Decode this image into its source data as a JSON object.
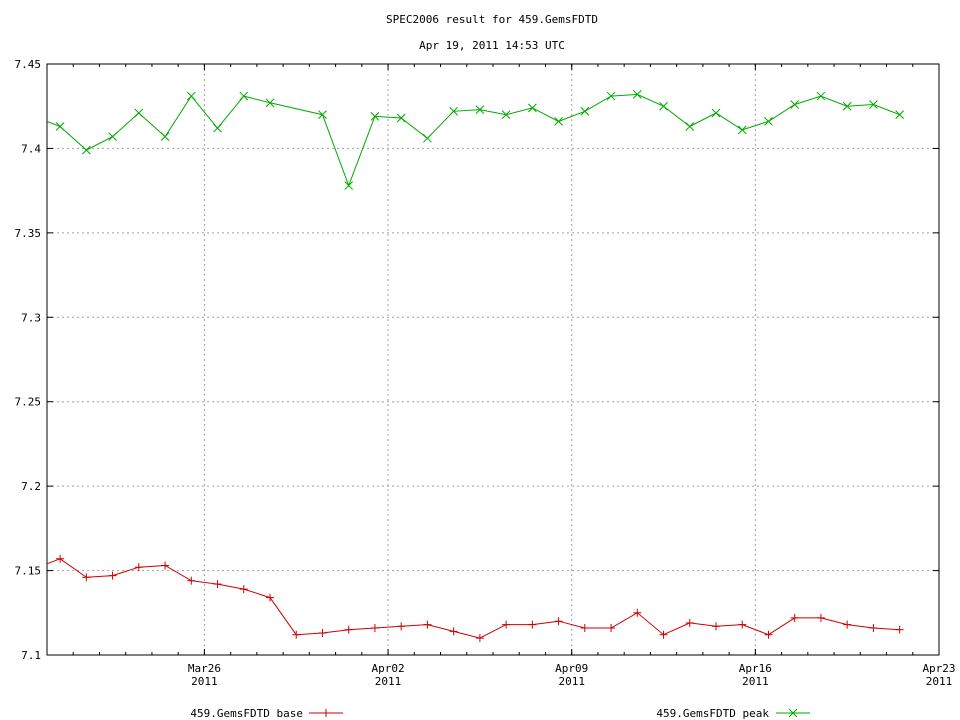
{
  "chart_data": {
    "type": "line",
    "title": "SPEC2006 result for 459.GemsFDTD",
    "subtitle": "Apr 19, 2011 14:53 UTC",
    "xlabel": "",
    "ylabel": "",
    "xlim": [
      "2011-03-20",
      "2011-04-23"
    ],
    "ylim": [
      7.1,
      7.45
    ],
    "grid": true,
    "legend_position": "bottom",
    "y_ticks": [
      "7.1",
      "7.15",
      "7.2",
      "7.25",
      "7.3",
      "7.35",
      "7.4",
      "7.45"
    ],
    "x_ticks": [
      {
        "date": "2011-03-26",
        "label": "Mar26",
        "year": "2011"
      },
      {
        "date": "2011-04-02",
        "label": "Apr02",
        "year": "2011"
      },
      {
        "date": "2011-04-09",
        "label": "Apr09",
        "year": "2011"
      },
      {
        "date": "2011-04-16",
        "label": "Apr16",
        "year": "2011"
      },
      {
        "date": "2011-04-23",
        "label": "Apr23",
        "year": "2011"
      }
    ],
    "series": [
      {
        "name": "459.GemsFDTD base",
        "color": "#cc0000",
        "marker": "plus",
        "points": [
          {
            "x": "2011-03-20",
            "y": 7.154
          },
          {
            "x": "2011-03-20T12:00",
            "y": 7.157
          },
          {
            "x": "2011-03-21T12:00",
            "y": 7.146
          },
          {
            "x": "2011-03-22T12:00",
            "y": 7.147
          },
          {
            "x": "2011-03-23T12:00",
            "y": 7.152
          },
          {
            "x": "2011-03-24T12:00",
            "y": 7.153
          },
          {
            "x": "2011-03-25T12:00",
            "y": 7.144
          },
          {
            "x": "2011-03-26T12:00",
            "y": 7.142
          },
          {
            "x": "2011-03-27T12:00",
            "y": 7.139
          },
          {
            "x": "2011-03-28T12:00",
            "y": 7.134
          },
          {
            "x": "2011-03-29T12:00",
            "y": 7.112
          },
          {
            "x": "2011-03-30T12:00",
            "y": 7.113
          },
          {
            "x": "2011-03-31T12:00",
            "y": 7.115
          },
          {
            "x": "2011-04-01T12:00",
            "y": 7.116
          },
          {
            "x": "2011-04-02T12:00",
            "y": 7.117
          },
          {
            "x": "2011-04-03T12:00",
            "y": 7.118
          },
          {
            "x": "2011-04-04T12:00",
            "y": 7.114
          },
          {
            "x": "2011-04-05T12:00",
            "y": 7.11
          },
          {
            "x": "2011-04-06T12:00",
            "y": 7.118
          },
          {
            "x": "2011-04-07T12:00",
            "y": 7.118
          },
          {
            "x": "2011-04-08T12:00",
            "y": 7.12
          },
          {
            "x": "2011-04-09T12:00",
            "y": 7.116
          },
          {
            "x": "2011-04-10T12:00",
            "y": 7.116
          },
          {
            "x": "2011-04-11T12:00",
            "y": 7.125
          },
          {
            "x": "2011-04-12T12:00",
            "y": 7.112
          },
          {
            "x": "2011-04-13T12:00",
            "y": 7.119
          },
          {
            "x": "2011-04-14T12:00",
            "y": 7.117
          },
          {
            "x": "2011-04-15T12:00",
            "y": 7.118
          },
          {
            "x": "2011-04-16T12:00",
            "y": 7.112
          },
          {
            "x": "2011-04-17T12:00",
            "y": 7.122
          },
          {
            "x": "2011-04-18T12:00",
            "y": 7.122
          },
          {
            "x": "2011-04-19T12:00",
            "y": 7.118
          },
          {
            "x": "2011-04-20T12:00",
            "y": 7.116
          },
          {
            "x": "2011-04-21T12:00",
            "y": 7.115
          }
        ]
      },
      {
        "name": "459.GemsFDTD peak",
        "color": "#00aa00",
        "marker": "cross",
        "points": [
          {
            "x": "2011-03-20",
            "y": 7.416
          },
          {
            "x": "2011-03-20T12:00",
            "y": 7.413
          },
          {
            "x": "2011-03-21T12:00",
            "y": 7.399
          },
          {
            "x": "2011-03-22T12:00",
            "y": 7.407
          },
          {
            "x": "2011-03-23T12:00",
            "y": 7.421
          },
          {
            "x": "2011-03-24T12:00",
            "y": 7.407
          },
          {
            "x": "2011-03-25T12:00",
            "y": 7.431
          },
          {
            "x": "2011-03-26T12:00",
            "y": 7.412
          },
          {
            "x": "2011-03-27T12:00",
            "y": 7.431
          },
          {
            "x": "2011-03-28T12:00",
            "y": 7.427
          },
          {
            "x": "2011-03-30T12:00",
            "y": 7.42
          },
          {
            "x": "2011-03-31T12:00",
            "y": 7.378
          },
          {
            "x": "2011-04-01T12:00",
            "y": 7.419
          },
          {
            "x": "2011-04-02T12:00",
            "y": 7.418
          },
          {
            "x": "2011-04-03T12:00",
            "y": 7.406
          },
          {
            "x": "2011-04-04T12:00",
            "y": 7.422
          },
          {
            "x": "2011-04-05T12:00",
            "y": 7.423
          },
          {
            "x": "2011-04-06T12:00",
            "y": 7.42
          },
          {
            "x": "2011-04-07T12:00",
            "y": 7.424
          },
          {
            "x": "2011-04-08T12:00",
            "y": 7.416
          },
          {
            "x": "2011-04-09T12:00",
            "y": 7.422
          },
          {
            "x": "2011-04-10T12:00",
            "y": 7.431
          },
          {
            "x": "2011-04-11T12:00",
            "y": 7.432
          },
          {
            "x": "2011-04-12T12:00",
            "y": 7.425
          },
          {
            "x": "2011-04-13T12:00",
            "y": 7.413
          },
          {
            "x": "2011-04-14T12:00",
            "y": 7.421
          },
          {
            "x": "2011-04-15T12:00",
            "y": 7.411
          },
          {
            "x": "2011-04-16T12:00",
            "y": 7.416
          },
          {
            "x": "2011-04-17T12:00",
            "y": 7.426
          },
          {
            "x": "2011-04-18T12:00",
            "y": 7.431
          },
          {
            "x": "2011-04-19T12:00",
            "y": 7.425
          },
          {
            "x": "2011-04-20T12:00",
            "y": 7.426
          },
          {
            "x": "2011-04-21T12:00",
            "y": 7.42
          }
        ]
      }
    ]
  }
}
